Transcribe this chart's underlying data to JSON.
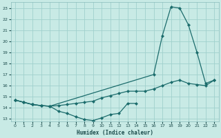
{
  "xlabel": "Humidex (Indice chaleur)",
  "bg_color": "#c8eae5",
  "grid_color": "#a0d0cc",
  "line_color": "#1a6b6b",
  "xlim": [
    -0.5,
    23.5
  ],
  "ylim": [
    12.8,
    23.5
  ],
  "yticks": [
    13,
    14,
    15,
    16,
    17,
    18,
    19,
    20,
    21,
    22,
    23
  ],
  "xticks": [
    0,
    1,
    2,
    3,
    4,
    5,
    6,
    7,
    8,
    9,
    10,
    11,
    12,
    13,
    14,
    15,
    16,
    17,
    18,
    19,
    20,
    21,
    22,
    23
  ],
  "line_max_x": [
    0,
    1,
    2,
    3,
    4,
    16,
    17,
    18,
    19,
    20,
    21,
    22,
    23
  ],
  "line_max_y": [
    14.7,
    14.5,
    14.3,
    14.2,
    14.15,
    17.0,
    20.5,
    23.1,
    23.0,
    21.5,
    19.0,
    16.2,
    16.5
  ],
  "line_mid_x": [
    0,
    1,
    2,
    3,
    4,
    5,
    6,
    7,
    8,
    9,
    10,
    11,
    12,
    13,
    14,
    15,
    16,
    17,
    18,
    19,
    20,
    21,
    22,
    23
  ],
  "line_mid_y": [
    14.7,
    14.5,
    14.3,
    14.2,
    14.15,
    14.2,
    14.3,
    14.4,
    14.5,
    14.6,
    14.9,
    15.1,
    15.3,
    15.5,
    15.5,
    15.5,
    15.7,
    16.0,
    16.3,
    16.5,
    16.2,
    16.1,
    16.0,
    16.5
  ],
  "line_min_x": [
    0,
    1,
    2,
    3,
    4,
    5,
    6,
    7,
    8,
    9,
    10,
    11,
    12,
    13,
    14
  ],
  "line_min_y": [
    14.7,
    14.5,
    14.3,
    14.2,
    14.15,
    13.7,
    13.5,
    13.2,
    12.95,
    12.85,
    13.1,
    13.4,
    13.5,
    14.4,
    14.4
  ]
}
